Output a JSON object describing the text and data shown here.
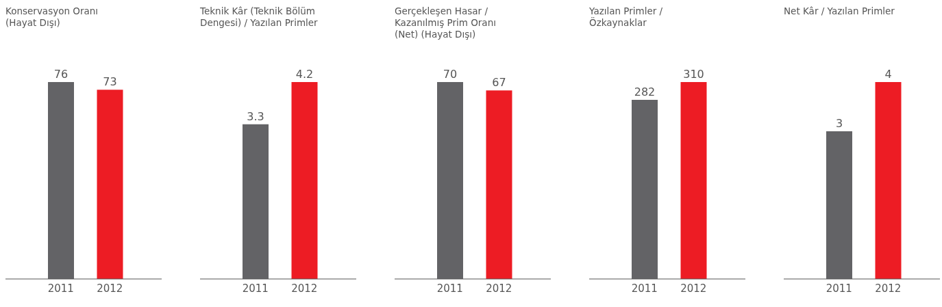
{
  "chart_data": [
    {
      "type": "bar",
      "title": "Konservasyon Oranı\n(Hayat Dışı)",
      "categories": [
        "2011",
        "2012"
      ],
      "values": [
        76,
        73
      ],
      "colors": [
        "#636366",
        "#ed1c24"
      ],
      "data_labels": true
    },
    {
      "type": "bar",
      "title": "Teknik Kâr (Teknik Bölüm\nDengesi) / Yazılan Primler",
      "categories": [
        "2011",
        "2012"
      ],
      "values": [
        3.3,
        4.2
      ],
      "colors": [
        "#636366",
        "#ed1c24"
      ],
      "data_labels": true
    },
    {
      "type": "bar",
      "title": "Gerçekleşen Hasar /\nKazanılmış Prim Oranı\n(Net) (Hayat Dışı)",
      "categories": [
        "2011",
        "2012"
      ],
      "values": [
        70,
        67
      ],
      "colors": [
        "#636366",
        "#ed1c24"
      ],
      "data_labels": true
    },
    {
      "type": "bar",
      "title": "Yazılan Primler /\nÖzkaynaklar",
      "categories": [
        "2011",
        "2012"
      ],
      "values": [
        282,
        310
      ],
      "colors": [
        "#636366",
        "#ed1c24"
      ],
      "data_labels": true
    },
    {
      "type": "bar",
      "title": "Net Kâr / Yazılan Primler",
      "categories": [
        "2011",
        "2012"
      ],
      "values": [
        3,
        4
      ],
      "colors": [
        "#636366",
        "#ed1c24"
      ],
      "data_labels": true
    }
  ]
}
